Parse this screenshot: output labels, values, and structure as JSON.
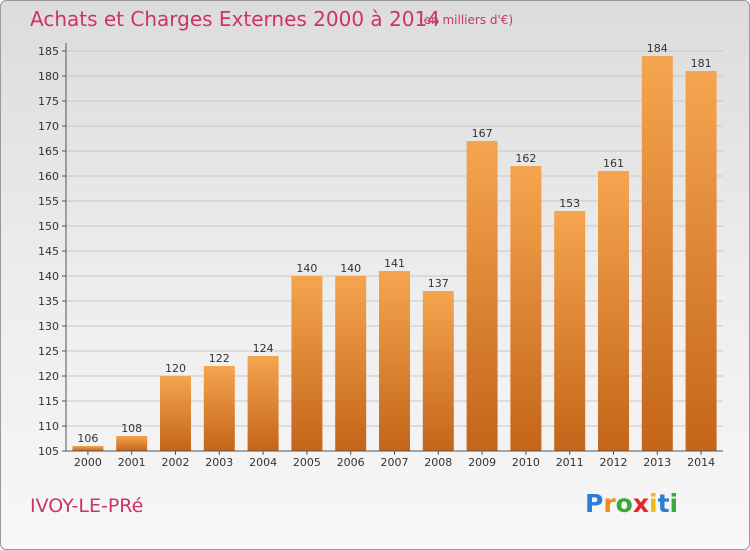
{
  "header": {
    "title": "Achats et Charges Externes 2000 à 2014",
    "subtitle": "(en milliers d'€)"
  },
  "footer": {
    "town": "IVOY-LE-PRé",
    "logo_letters": [
      "P",
      "r",
      "o",
      "x",
      "i",
      "t",
      "i"
    ],
    "logo_colors": [
      "#2a7fd4",
      "#f08a1c",
      "#3aa83a",
      "#e0282e",
      "#f0b81c",
      "#2a7fd4",
      "#3aa83a"
    ]
  },
  "colors": {
    "title": "#cc3366",
    "bar_light": "#f5a54f",
    "bar_dark": "#c4651a",
    "gridline": "#c8c8c8"
  },
  "chart_data": {
    "type": "bar",
    "title": "Achats et Charges Externes 2000 à 2014",
    "subtitle": "(en milliers d'€)",
    "categories": [
      "2000",
      "2001",
      "2002",
      "2003",
      "2004",
      "2005",
      "2006",
      "2007",
      "2008",
      "2009",
      "2010",
      "2011",
      "2012",
      "2013",
      "2014"
    ],
    "values": [
      106,
      108,
      120,
      122,
      124,
      140,
      140,
      141,
      137,
      167,
      162,
      153,
      161,
      184,
      181
    ],
    "ylim": [
      105,
      185
    ],
    "yticks": [
      105,
      110,
      115,
      120,
      125,
      130,
      135,
      140,
      145,
      150,
      155,
      160,
      165,
      170,
      175,
      180,
      185
    ],
    "grid": true,
    "legend": "none",
    "data_labels": true
  }
}
